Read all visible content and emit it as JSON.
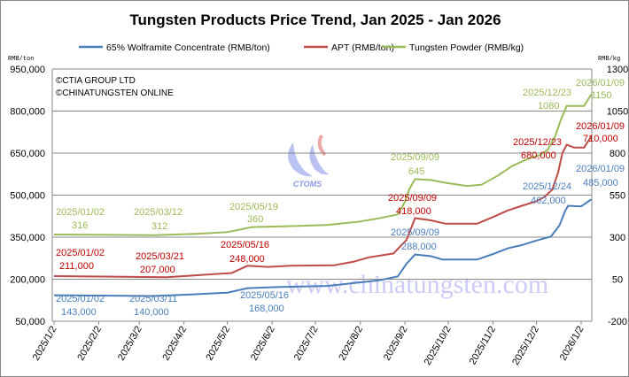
{
  "chart_data": {
    "type": "line",
    "title": "Tungsten Products Price Trend, Jan 2025 - Jan 2026",
    "y_left_unit": "RMB/ton",
    "y_right_unit": "RMB/kg",
    "ylim_left": [
      50000,
      950000
    ],
    "yticks_left": [
      "950,000",
      "800,000",
      "650,000",
      "500,000",
      "350,000",
      "200,000",
      "50,000"
    ],
    "ylim_right": [
      -200,
      1300
    ],
    "yticks_right": [
      "1300",
      "1050",
      "800",
      "550",
      "300",
      "50",
      "-200"
    ],
    "xticks": [
      "2025/1/2",
      "2025/2/2",
      "2025/3/2",
      "2025/4/2",
      "2025/5/2",
      "2025/6/2",
      "2025/7/2",
      "2025/8/2",
      "2025/9/2",
      "2025/10/2",
      "2025/11/2",
      "2025/12/2",
      "2026/1/2"
    ],
    "grid": true,
    "legend": "top",
    "copyright": [
      "©CTIA GROUP LTD",
      "©CHINATUNGSTEN ONLINE"
    ],
    "watermark": [
      "CTOMS",
      "www.chinatungsten.com"
    ],
    "series": [
      {
        "name": "65% Wolframite Concentrate (RMB/ton)",
        "axis": "left",
        "color": "#4a7ebb",
        "points": [
          [
            "2025-01-02",
            143000
          ],
          [
            "2025-03-11",
            140000
          ],
          [
            "2025-04-05",
            145000
          ],
          [
            "2025-05-02",
            152000
          ],
          [
            "2025-05-16",
            168000
          ],
          [
            "2025-06-05",
            172000
          ],
          [
            "2025-07-10",
            176000
          ],
          [
            "2025-08-01",
            188000
          ],
          [
            "2025-08-15",
            196000
          ],
          [
            "2025-08-28",
            210000
          ],
          [
            "2025-09-03",
            255000
          ],
          [
            "2025-09-09",
            288000
          ],
          [
            "2025-09-20",
            282000
          ],
          [
            "2025-09-28",
            270000
          ],
          [
            "2025-10-22",
            270000
          ],
          [
            "2025-11-02",
            290000
          ],
          [
            "2025-11-12",
            310000
          ],
          [
            "2025-11-22",
            322000
          ],
          [
            "2025-12-02",
            338000
          ],
          [
            "2025-12-12",
            352000
          ],
          [
            "2025-12-18",
            392000
          ],
          [
            "2025-12-22",
            445000
          ],
          [
            "2025-12-24",
            462000
          ],
          [
            "2026-01-02",
            460000
          ],
          [
            "2026-01-09",
            485000
          ]
        ],
        "annotations": [
          [
            "2025/01/02",
            "143,000"
          ],
          [
            "2025/03/11",
            "140,000"
          ],
          [
            "2025/05/16",
            "168,000"
          ],
          [
            "2025/09/09",
            "288,000"
          ],
          [
            "2025/12/24",
            "462,000"
          ],
          [
            "2026/01/09",
            "485,000"
          ]
        ]
      },
      {
        "name": "APT (RMB/ton)",
        "axis": "left",
        "color": "#be4b48",
        "points": [
          [
            "2025-01-02",
            211000
          ],
          [
            "2025-03-21",
            207000
          ],
          [
            "2025-04-10",
            214000
          ],
          [
            "2025-05-05",
            222000
          ],
          [
            "2025-05-16",
            248000
          ],
          [
            "2025-05-30",
            244000
          ],
          [
            "2025-06-15",
            248000
          ],
          [
            "2025-07-15",
            250000
          ],
          [
            "2025-07-28",
            262000
          ],
          [
            "2025-08-08",
            278000
          ],
          [
            "2025-08-25",
            292000
          ],
          [
            "2025-09-03",
            340000
          ],
          [
            "2025-09-09",
            418000
          ],
          [
            "2025-09-20",
            410000
          ],
          [
            "2025-09-30",
            398000
          ],
          [
            "2025-10-22",
            398000
          ],
          [
            "2025-11-02",
            422000
          ],
          [
            "2025-11-12",
            445000
          ],
          [
            "2025-11-22",
            462000
          ],
          [
            "2025-12-02",
            478000
          ],
          [
            "2025-12-08",
            495000
          ],
          [
            "2025-12-13",
            520000
          ],
          [
            "2025-12-17",
            580000
          ],
          [
            "2025-12-20",
            650000
          ],
          [
            "2025-12-23",
            680000
          ],
          [
            "2025-12-28",
            670000
          ],
          [
            "2026-01-04",
            670000
          ],
          [
            "2026-01-09",
            710000
          ]
        ],
        "annotations": [
          [
            "2025/01/02",
            "211,000"
          ],
          [
            "2025/03/21",
            "207,000"
          ],
          [
            "2025/05/16",
            "248,000"
          ],
          [
            "2025/09/09",
            "418,000"
          ],
          [
            "2025/12/23",
            "680,000"
          ],
          [
            "2026/01/09",
            "710,000"
          ]
        ]
      },
      {
        "name": "Tungsten Powder (RMB/kg)",
        "axis": "right",
        "color": "#9bbb59",
        "points": [
          [
            "2025-01-02",
            316
          ],
          [
            "2025-03-12",
            312
          ],
          [
            "2025-04-10",
            320
          ],
          [
            "2025-05-02",
            330
          ],
          [
            "2025-05-19",
            360
          ],
          [
            "2025-06-10",
            365
          ],
          [
            "2025-07-10",
            372
          ],
          [
            "2025-08-01",
            392
          ],
          [
            "2025-08-15",
            412
          ],
          [
            "2025-08-28",
            435
          ],
          [
            "2025-09-02",
            510
          ],
          [
            "2025-09-05",
            585
          ],
          [
            "2025-09-09",
            645
          ],
          [
            "2025-09-20",
            640
          ],
          [
            "2025-10-01",
            622
          ],
          [
            "2025-10-15",
            605
          ],
          [
            "2025-10-25",
            612
          ],
          [
            "2025-11-05",
            665
          ],
          [
            "2025-11-15",
            722
          ],
          [
            "2025-11-25",
            762
          ],
          [
            "2025-12-05",
            790
          ],
          [
            "2025-12-10",
            822
          ],
          [
            "2025-12-15",
            900
          ],
          [
            "2025-12-19",
            1000
          ],
          [
            "2025-12-23",
            1080
          ],
          [
            "2026-01-04",
            1080
          ],
          [
            "2026-01-09",
            1150
          ]
        ],
        "annotations": [
          [
            "2025/01/02",
            "316"
          ],
          [
            "2025/03/12",
            "312"
          ],
          [
            "2025/05/19",
            "360"
          ],
          [
            "2025/09/09",
            "645"
          ],
          [
            "2025/12/23",
            "1080"
          ],
          [
            "2026/01/09",
            "1150"
          ]
        ]
      }
    ]
  }
}
